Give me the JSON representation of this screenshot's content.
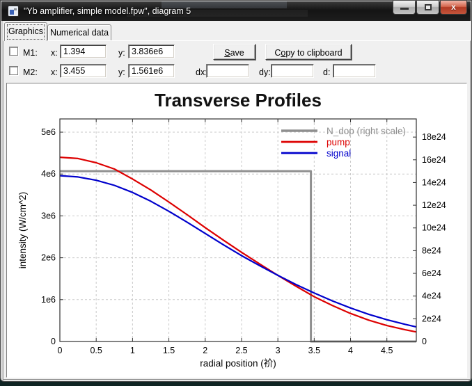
{
  "window": {
    "title": "\"Yb amplifier, simple model.fpw\", diagram 5",
    "buttons": {
      "minimize": "minimize",
      "restore": "restore",
      "close": "close"
    }
  },
  "tabs": [
    {
      "label": "Graphics",
      "active": true
    },
    {
      "label": "Numerical data",
      "active": false
    }
  ],
  "markers": {
    "m1": {
      "label": "M1:",
      "x_label": "x:",
      "x_value": "1.394",
      "y_label": "y:",
      "y_value": "3.836e6",
      "checked": false
    },
    "m2": {
      "label": "M2:",
      "x_label": "x:",
      "x_value": "3.455",
      "y_label": "y:",
      "y_value": "1.561e6",
      "checked": false
    },
    "dx_label": "dx:",
    "dx_value": "",
    "dy_label": "dy:",
    "dy_value": "",
    "d_label": "d:",
    "d_value": ""
  },
  "buttons": {
    "save": {
      "pre": "",
      "u": "S",
      "rest": "ave"
    },
    "copy": {
      "pre": "C",
      "u": "o",
      "rest": "py to clipboard"
    }
  },
  "chart_data": {
    "type": "line",
    "title": "Transverse Profiles",
    "xlabel": "radial position (祄)",
    "ylabel_left": "intensity (W/cm^2)",
    "grid": true,
    "grid_color": "#c9c9c9",
    "frame_color": "#303030",
    "legend_position": "top-right-inside",
    "xlim": [
      0,
      4.905
    ],
    "x_ticks": [
      0,
      0.5,
      1,
      1.5,
      2,
      2.5,
      3,
      3.5,
      4,
      4.5
    ],
    "x_tick_labels": [
      "0",
      "0.5",
      "1",
      "1.5",
      "2",
      "2.5",
      "3",
      "3.5",
      "4",
      "4.5"
    ],
    "left_axis_unit": "1e6 W/cm^2",
    "leftlim": [
      0,
      5.316
    ],
    "left_tick_values": [
      0,
      1,
      2,
      3,
      4,
      5
    ],
    "left_tick_labels": [
      "0",
      "1e6",
      "2e6",
      "3e6",
      "4e6",
      "5e6"
    ],
    "right_axis_unit": "1e24 m^-3",
    "rightlim": [
      0,
      19.6
    ],
    "right_tick_values": [
      0,
      2,
      4,
      6,
      8,
      10,
      12,
      14,
      16,
      18
    ],
    "right_tick_labels": [
      "0",
      "2e24",
      "4e24",
      "6e24",
      "8e24",
      "10e24",
      "12e24",
      "14e24",
      "16e24",
      "18e24"
    ],
    "series": [
      {
        "name": "N_dop (right scale)",
        "color": "#8f8f8f",
        "axis": "right",
        "width": 3,
        "x": [
          0,
          3.455,
          3.455,
          4.905
        ],
        "y": [
          15,
          15,
          0,
          0
        ]
      },
      {
        "name": "pump",
        "color": "#dd0000",
        "axis": "left",
        "width": 2.2,
        "x": [
          0,
          0.25,
          0.5,
          0.75,
          1,
          1.25,
          1.5,
          1.75,
          2,
          2.25,
          2.5,
          2.75,
          3,
          3.25,
          3.5,
          3.75,
          4,
          4.25,
          4.5,
          4.75,
          4.9
        ],
        "y": [
          4.4,
          4.37,
          4.27,
          4.12,
          3.88,
          3.62,
          3.33,
          3.03,
          2.72,
          2.42,
          2.13,
          1.85,
          1.58,
          1.32,
          1.07,
          0.86,
          0.67,
          0.51,
          0.38,
          0.28,
          0.23
        ]
      },
      {
        "name": "signal",
        "color": "#0000cc",
        "axis": "left",
        "width": 2.2,
        "x": [
          0,
          0.25,
          0.5,
          0.75,
          1,
          1.25,
          1.5,
          1.75,
          2,
          2.25,
          2.5,
          2.75,
          3,
          3.25,
          3.5,
          3.75,
          4,
          4.25,
          4.5,
          4.75,
          4.9
        ],
        "y": [
          3.96,
          3.93,
          3.85,
          3.73,
          3.56,
          3.35,
          3.11,
          2.85,
          2.58,
          2.31,
          2.05,
          1.81,
          1.58,
          1.36,
          1.16,
          0.97,
          0.8,
          0.65,
          0.52,
          0.41,
          0.35
        ]
      }
    ]
  }
}
